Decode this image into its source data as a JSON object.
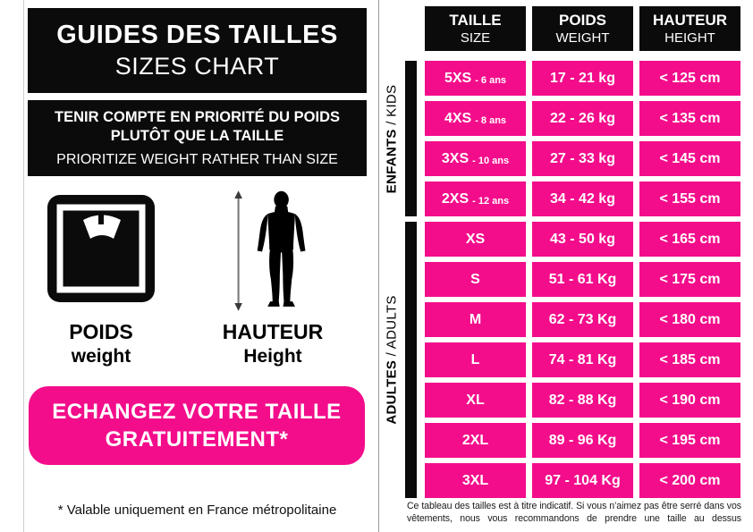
{
  "colors": {
    "pink": "#F30D8B",
    "black": "#0B0B0B"
  },
  "left_panel": {
    "title_fr": "GUIDES DES TAILLES",
    "title_en": "SIZES CHART",
    "notice_fr_line1": "TENIR COMPTE EN PRIORITÉ DU POIDS",
    "notice_fr_line2": "PLUTÔT QUE LA TAILLE",
    "notice_en": "PRIORITIZE WEIGHT RATHER THAN SIZE",
    "weight_label_fr": "POIDS",
    "weight_label_en": "weight",
    "height_label_fr": "HAUTEUR",
    "height_label_en": "Height",
    "exchange_line1": "ECHANGEZ VOTRE TAILLE",
    "exchange_line2": "GRATUITEMENT*",
    "footnote": "* Valable uniquement en France métropolitaine"
  },
  "table": {
    "headers": [
      {
        "fr": "TAILLE",
        "en": "SIZE"
      },
      {
        "fr": "POIDS",
        "en": "WEIGHT"
      },
      {
        "fr": "HAUTEUR",
        "en": "HEIGHT"
      }
    ],
    "groups": [
      {
        "fr": "ENFANTS",
        "sep": " / ",
        "en": "KIDS"
      },
      {
        "fr": "ADULTES",
        "sep": " / ",
        "en": "ADULTS"
      }
    ],
    "rows": [
      {
        "size": "5XS",
        "age": "- 6 ans",
        "weight": "17 - 21 kg",
        "height": "< 125 cm"
      },
      {
        "size": "4XS",
        "age": "- 8 ans",
        "weight": "22 - 26 kg",
        "height": "< 135 cm"
      },
      {
        "size": "3XS",
        "age": "- 10 ans",
        "weight": "27 - 33 kg",
        "height": "< 145 cm"
      },
      {
        "size": "2XS",
        "age": "- 12 ans",
        "weight": "34 - 42 kg",
        "height": "< 155 cm"
      },
      {
        "size": "XS",
        "age": "",
        "weight": "43 - 50 kg",
        "height": "< 165 cm"
      },
      {
        "size": "S",
        "age": "",
        "weight": "51 - 61 Kg",
        "height": "< 175 cm"
      },
      {
        "size": "M",
        "age": "",
        "weight": "62 - 73 Kg",
        "height": "< 180 cm"
      },
      {
        "size": "L",
        "age": "",
        "weight": "74 - 81 Kg",
        "height": "< 185 cm"
      },
      {
        "size": "XL",
        "age": "",
        "weight": "82 - 88 Kg",
        "height": "< 190 cm"
      },
      {
        "size": "2XL",
        "age": "",
        "weight": "89 - 96 Kg",
        "height": "< 195 cm"
      },
      {
        "size": "3XL",
        "age": "",
        "weight": "97 - 104 Kg",
        "height": "< 200 cm"
      }
    ],
    "disclaimer": "Ce tableau des tailles est à titre indicatif. Si vous n’aimez pas être serré dans vos vêtements, nous vous recommandons de prendre une taille au dessus"
  },
  "chart_data": {
    "type": "table",
    "title": "GUIDES DES TAILLES / SIZES CHART",
    "columns": [
      "TAILLE / SIZE",
      "POIDS / WEIGHT",
      "HAUTEUR / HEIGHT"
    ],
    "row_groups": [
      {
        "group": "ENFANTS / KIDS",
        "rows": [
          [
            "5XS - 6 ans",
            "17 - 21 kg",
            "< 125 cm"
          ],
          [
            "4XS - 8 ans",
            "22 - 26 kg",
            "< 135 cm"
          ],
          [
            "3XS - 10 ans",
            "27 - 33 kg",
            "< 145 cm"
          ],
          [
            "2XS - 12 ans",
            "34 - 42 kg",
            "< 155 cm"
          ]
        ]
      },
      {
        "group": "ADULTES / ADULTS",
        "rows": [
          [
            "XS",
            "43 - 50 kg",
            "< 165 cm"
          ],
          [
            "S",
            "51 - 61 Kg",
            "< 175 cm"
          ],
          [
            "M",
            "62 - 73 Kg",
            "< 180 cm"
          ],
          [
            "L",
            "74 - 81 Kg",
            "< 185 cm"
          ],
          [
            "XL",
            "82 - 88 Kg",
            "< 190 cm"
          ],
          [
            "2XL",
            "89 - 96 Kg",
            "< 195 cm"
          ],
          [
            "3XL",
            "97 - 104 Kg",
            "< 200 cm"
          ]
        ]
      }
    ]
  }
}
